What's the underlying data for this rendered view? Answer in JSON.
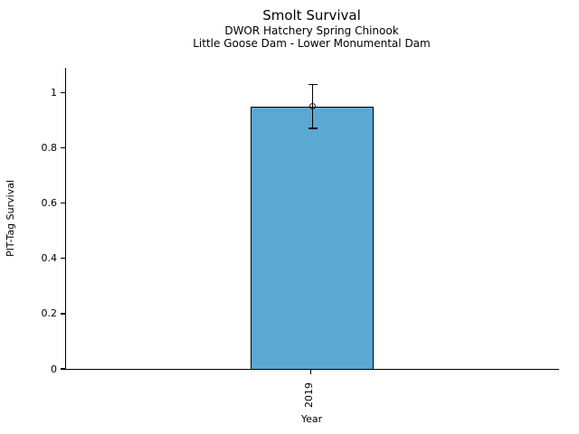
{
  "chart_data": {
    "type": "bar",
    "title": "Smolt Survival",
    "subtitles": [
      "DWOR Hatchery Spring Chinook",
      "Little Goose Dam - Lower Monumental Dam"
    ],
    "categories": [
      "2019"
    ],
    "values": [
      0.95
    ],
    "error_low": [
      0.87
    ],
    "error_high": [
      1.03
    ],
    "xlabel": "Year",
    "ylabel": "PIT-Tag Survival",
    "ylim": [
      0,
      1.09
    ],
    "yticks": [
      0,
      0.2,
      0.4,
      0.6,
      0.8,
      1
    ],
    "ytick_labels": [
      "0",
      "0.2",
      "0.4",
      "0.6",
      "0.8",
      "1"
    ],
    "xtick_rotation_deg": 90,
    "grid": false,
    "legend": false,
    "bar_color": "#5BA8D3",
    "bar_edge_color": "#000000",
    "error_bar_color": "#000000",
    "background_color": "#ffffff"
  }
}
